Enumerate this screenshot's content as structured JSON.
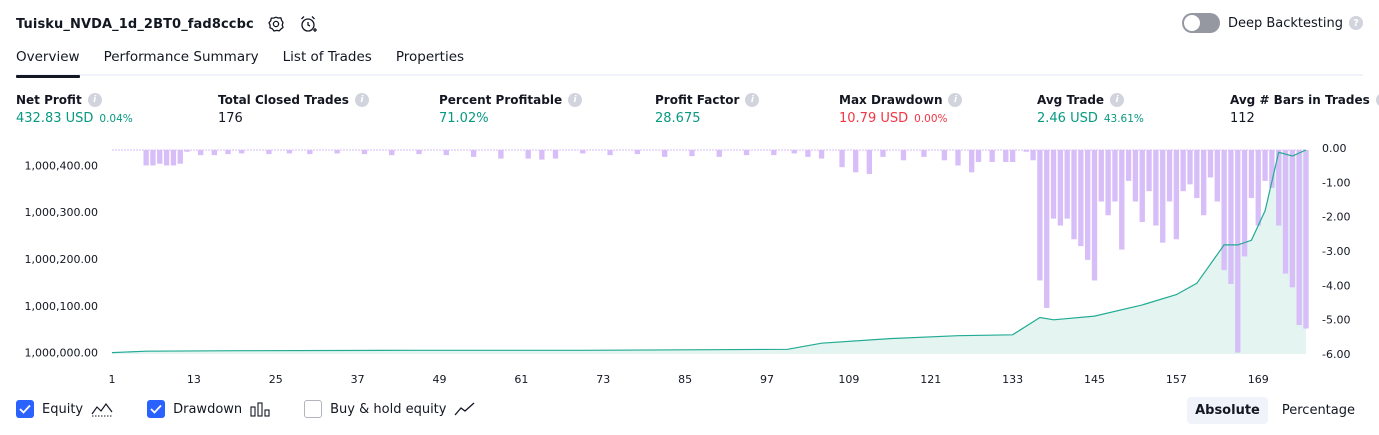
{
  "header": {
    "title": "Tuisku_NVDA_1d_2BT0_fad8ccbc",
    "deep_backtesting_label": "Deep Backtesting",
    "help_glyph": "?"
  },
  "tabs": [
    {
      "label": "Overview"
    },
    {
      "label": "Performance Summary"
    },
    {
      "label": "List of Trades"
    },
    {
      "label": "Properties"
    }
  ],
  "metrics": [
    {
      "label": "Net Profit",
      "value": "432.83 USD",
      "sub": "0.04%"
    },
    {
      "label": "Total Closed Trades",
      "value": "176",
      "sub": ""
    },
    {
      "label": "Percent Profitable",
      "value": "71.02%",
      "sub": ""
    },
    {
      "label": "Profit Factor",
      "value": "28.675",
      "sub": ""
    },
    {
      "label": "Max Drawdown",
      "value": "10.79 USD",
      "sub": "0.00%"
    },
    {
      "label": "Avg Trade",
      "value": "2.46 USD",
      "sub": "43.61%"
    },
    {
      "label": "Avg # Bars in Trades",
      "value": "112",
      "sub": ""
    }
  ],
  "info_glyph": "i",
  "colors": {
    "positive": "#089981",
    "negative": "#f23645",
    "equity_line": "#22ab94",
    "equity_fill": "#dff3ee",
    "drawdown_bar": "#d7bef8",
    "accent": "#2962ff"
  },
  "chart_data": {
    "type": "area",
    "x_ticks": [
      "1",
      "13",
      "25",
      "37",
      "49",
      "61",
      "73",
      "85",
      "97",
      "109",
      "121",
      "133",
      "145",
      "157",
      "169"
    ],
    "left_axis": {
      "ticks": [
        "1,000,400.00",
        "1,000,300.00",
        "1,000,200.00",
        "1,000,100.00",
        "1,000,000.00"
      ],
      "range": [
        999997,
        1000432.83
      ]
    },
    "right_axis": {
      "ticks": [
        "0.00",
        "-1.00",
        "-2.00",
        "-3.00",
        "-4.00",
        "-5.00",
        "-6.00"
      ],
      "range": [
        -6.0,
        0.0
      ]
    },
    "series": [
      {
        "name": "Equity",
        "x": [
          1,
          6,
          20,
          45,
          70,
          100,
          105,
          115,
          125,
          133,
          137,
          139,
          145,
          152,
          157,
          160,
          164,
          166,
          168,
          170,
          172,
          174,
          176
        ],
        "values": [
          0,
          3,
          4,
          5,
          5,
          7,
          20,
          30,
          36,
          38,
          75,
          70,
          78,
          102,
          124,
          148,
          230,
          230,
          240,
          303,
          428,
          420,
          432.83
        ]
      },
      {
        "name": "Drawdown",
        "x": [
          6,
          7,
          8,
          9,
          10,
          11,
          12,
          14,
          16,
          18,
          20,
          24,
          27,
          30,
          34,
          38,
          42,
          46,
          50,
          54,
          58,
          62,
          64,
          66,
          70,
          74,
          78,
          82,
          86,
          90,
          94,
          98,
          101,
          103,
          105,
          108,
          110,
          112,
          114,
          117,
          120,
          123,
          125,
          127,
          128,
          130,
          132,
          133,
          135,
          136,
          137,
          138,
          139,
          140,
          141,
          142,
          143,
          144,
          145,
          146,
          147,
          148,
          149,
          150,
          151,
          152,
          153,
          154,
          155,
          156,
          157,
          158,
          159,
          160,
          161,
          162,
          163,
          164,
          165,
          166,
          167,
          168,
          169,
          170,
          171,
          172,
          173,
          174,
          175,
          176
        ],
        "values": [
          -0.45,
          -0.45,
          -0.4,
          -0.45,
          -0.45,
          -0.4,
          -0.05,
          -0.15,
          -0.15,
          -0.12,
          -0.1,
          -0.12,
          -0.1,
          -0.12,
          -0.1,
          -0.12,
          -0.15,
          -0.12,
          -0.15,
          -0.2,
          -0.25,
          -0.25,
          -0.28,
          -0.25,
          -0.1,
          -0.15,
          -0.12,
          -0.2,
          -0.18,
          -0.2,
          -0.15,
          -0.15,
          -0.1,
          -0.2,
          -0.25,
          -0.5,
          -0.65,
          -0.7,
          -0.2,
          -0.3,
          -0.2,
          -0.3,
          -0.45,
          -0.65,
          -0.35,
          -0.35,
          -0.35,
          -0.35,
          -0.05,
          -0.3,
          -3.8,
          -4.6,
          -2.0,
          -2.2,
          -2.0,
          -2.6,
          -2.8,
          -3.2,
          -3.8,
          -1.5,
          -1.9,
          -1.5,
          -2.9,
          -0.9,
          -1.5,
          -2.1,
          -1.2,
          -2.2,
          -2.7,
          -1.5,
          -2.6,
          -1.2,
          -1.0,
          -1.4,
          -1.9,
          -0.8,
          -1.5,
          -3.5,
          -3.9,
          -5.9,
          -3.1,
          -1.4,
          -2.2,
          -0.9,
          -1.1,
          -2.2,
          -3.6,
          -4.0,
          -5.1,
          -5.2
        ]
      }
    ]
  },
  "legend": {
    "items": [
      {
        "label": "Equity",
        "checked": true
      },
      {
        "label": "Drawdown",
        "checked": true
      },
      {
        "label": "Buy & hold equity",
        "checked": false
      }
    ]
  },
  "scale": {
    "absolute": "Absolute",
    "percentage": "Percentage"
  }
}
